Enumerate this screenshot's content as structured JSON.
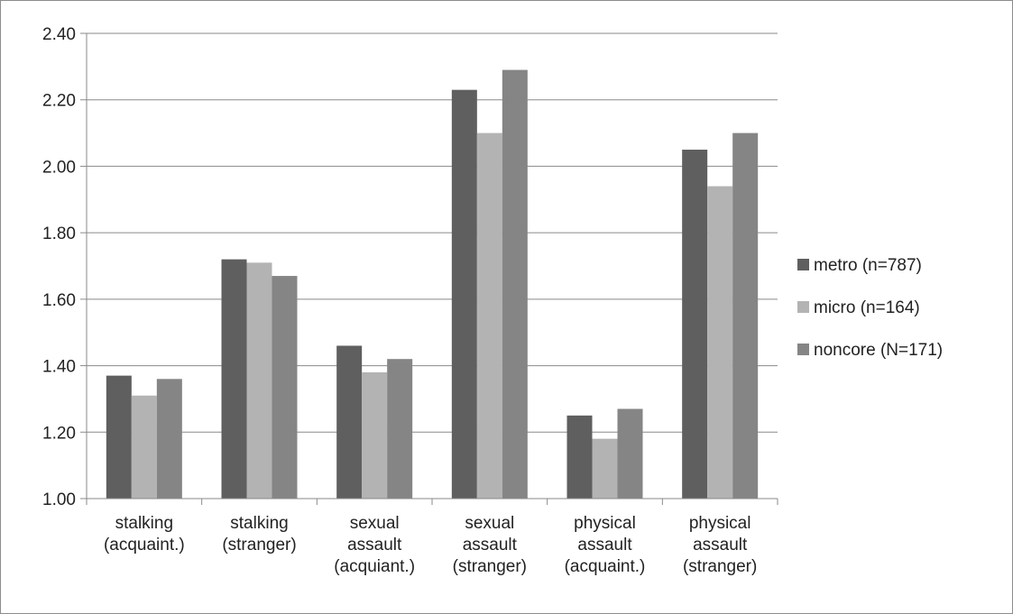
{
  "chart_data": {
    "type": "bar",
    "categories": [
      [
        "stalking",
        "(acquaint.)"
      ],
      [
        "stalking",
        "(stranger)"
      ],
      [
        "sexual",
        "assault",
        "(acquiant.)"
      ],
      [
        "sexual",
        "assault",
        "(stranger)"
      ],
      [
        "physical",
        "assault",
        "(acquaint.)"
      ],
      [
        "physical",
        "assault",
        "(stranger)"
      ]
    ],
    "series": [
      {
        "name": "metro (n=787)",
        "color": "#5f5f5f",
        "values": [
          1.37,
          1.72,
          1.46,
          2.23,
          1.25,
          2.05
        ]
      },
      {
        "name": "micro (n=164)",
        "color": "#b3b3b3",
        "values": [
          1.31,
          1.71,
          1.38,
          2.1,
          1.18,
          1.94
        ]
      },
      {
        "name": "noncore (N=171)",
        "color": "#858585",
        "values": [
          1.36,
          1.67,
          1.42,
          2.29,
          1.27,
          2.1
        ]
      }
    ],
    "ylim": [
      1.0,
      2.4
    ],
    "yticks": [
      "1.00",
      "1.20",
      "1.40",
      "1.60",
      "1.80",
      "2.00",
      "2.20",
      "2.40"
    ],
    "ytick_values": [
      1.0,
      1.2,
      1.4,
      1.6,
      1.8,
      2.0,
      2.2,
      2.4
    ],
    "grid": true,
    "legend_position": "right",
    "title": "",
    "xlabel": "",
    "ylabel": ""
  }
}
